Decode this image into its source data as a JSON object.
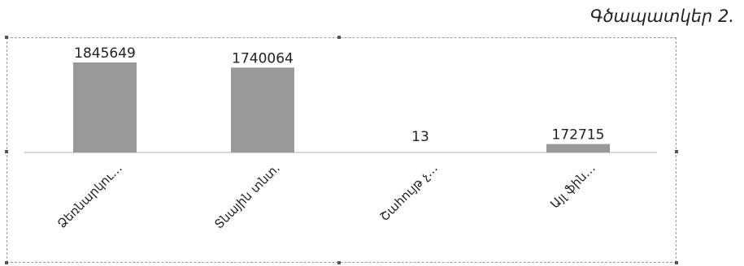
{
  "figure": {
    "caption": "Գծապատկեր 2."
  },
  "chart_data": {
    "type": "bar",
    "categories": [
      "Ձեռնարկու…",
      "Տնային տնտ.",
      "Շահույթ չ…",
      "Այլ ֆին…"
    ],
    "values": [
      1845649,
      1740064,
      13,
      172715
    ],
    "data_labels": [
      "1845649",
      "1740064",
      "13",
      "172715"
    ],
    "ylim": [
      0,
      1845649
    ],
    "grid": false,
    "legend": "none",
    "colors": {
      "bar": "#999999",
      "axis": "#c8c8c8"
    }
  }
}
